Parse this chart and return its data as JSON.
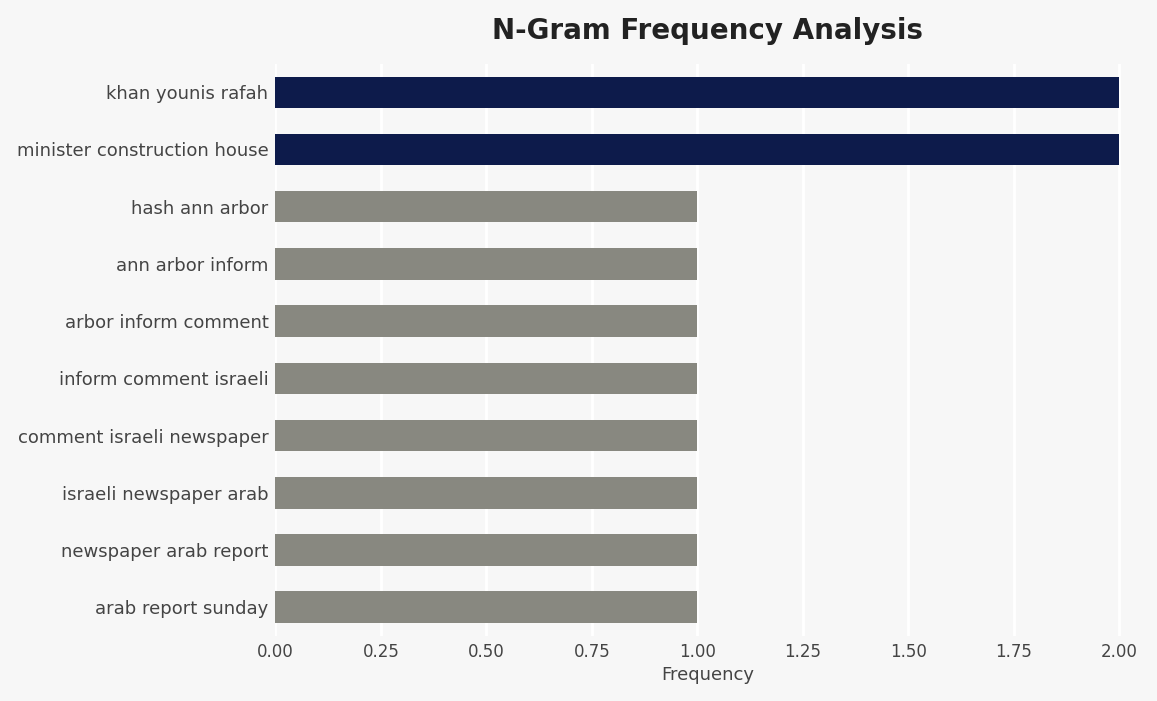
{
  "title": "N-Gram Frequency Analysis",
  "xlabel": "Frequency",
  "categories": [
    "arab report sunday",
    "newspaper arab report",
    "israeli newspaper arab",
    "comment israeli newspaper",
    "inform comment israeli",
    "arbor inform comment",
    "ann arbor inform",
    "hash ann arbor",
    "minister construction house",
    "khan younis rafah"
  ],
  "values": [
    1,
    1,
    1,
    1,
    1,
    1,
    1,
    1,
    2,
    2
  ],
  "bar_colors": [
    "#888880",
    "#888880",
    "#888880",
    "#888880",
    "#888880",
    "#888880",
    "#888880",
    "#888880",
    "#0d1b4b",
    "#0d1b4b"
  ],
  "background_color": "#f7f7f7",
  "xlim": [
    0,
    2.05
  ],
  "xticks": [
    0.0,
    0.25,
    0.5,
    0.75,
    1.0,
    1.25,
    1.5,
    1.75,
    2.0
  ],
  "xtick_labels": [
    "0.00",
    "0.25",
    "0.50",
    "0.75",
    "1.00",
    "1.25",
    "1.50",
    "1.75",
    "2.00"
  ],
  "title_fontsize": 20,
  "label_fontsize": 13,
  "tick_fontsize": 12,
  "bar_height": 0.55,
  "grid_color": "#ffffff",
  "label_color": "#444444",
  "title_color": "#222222"
}
